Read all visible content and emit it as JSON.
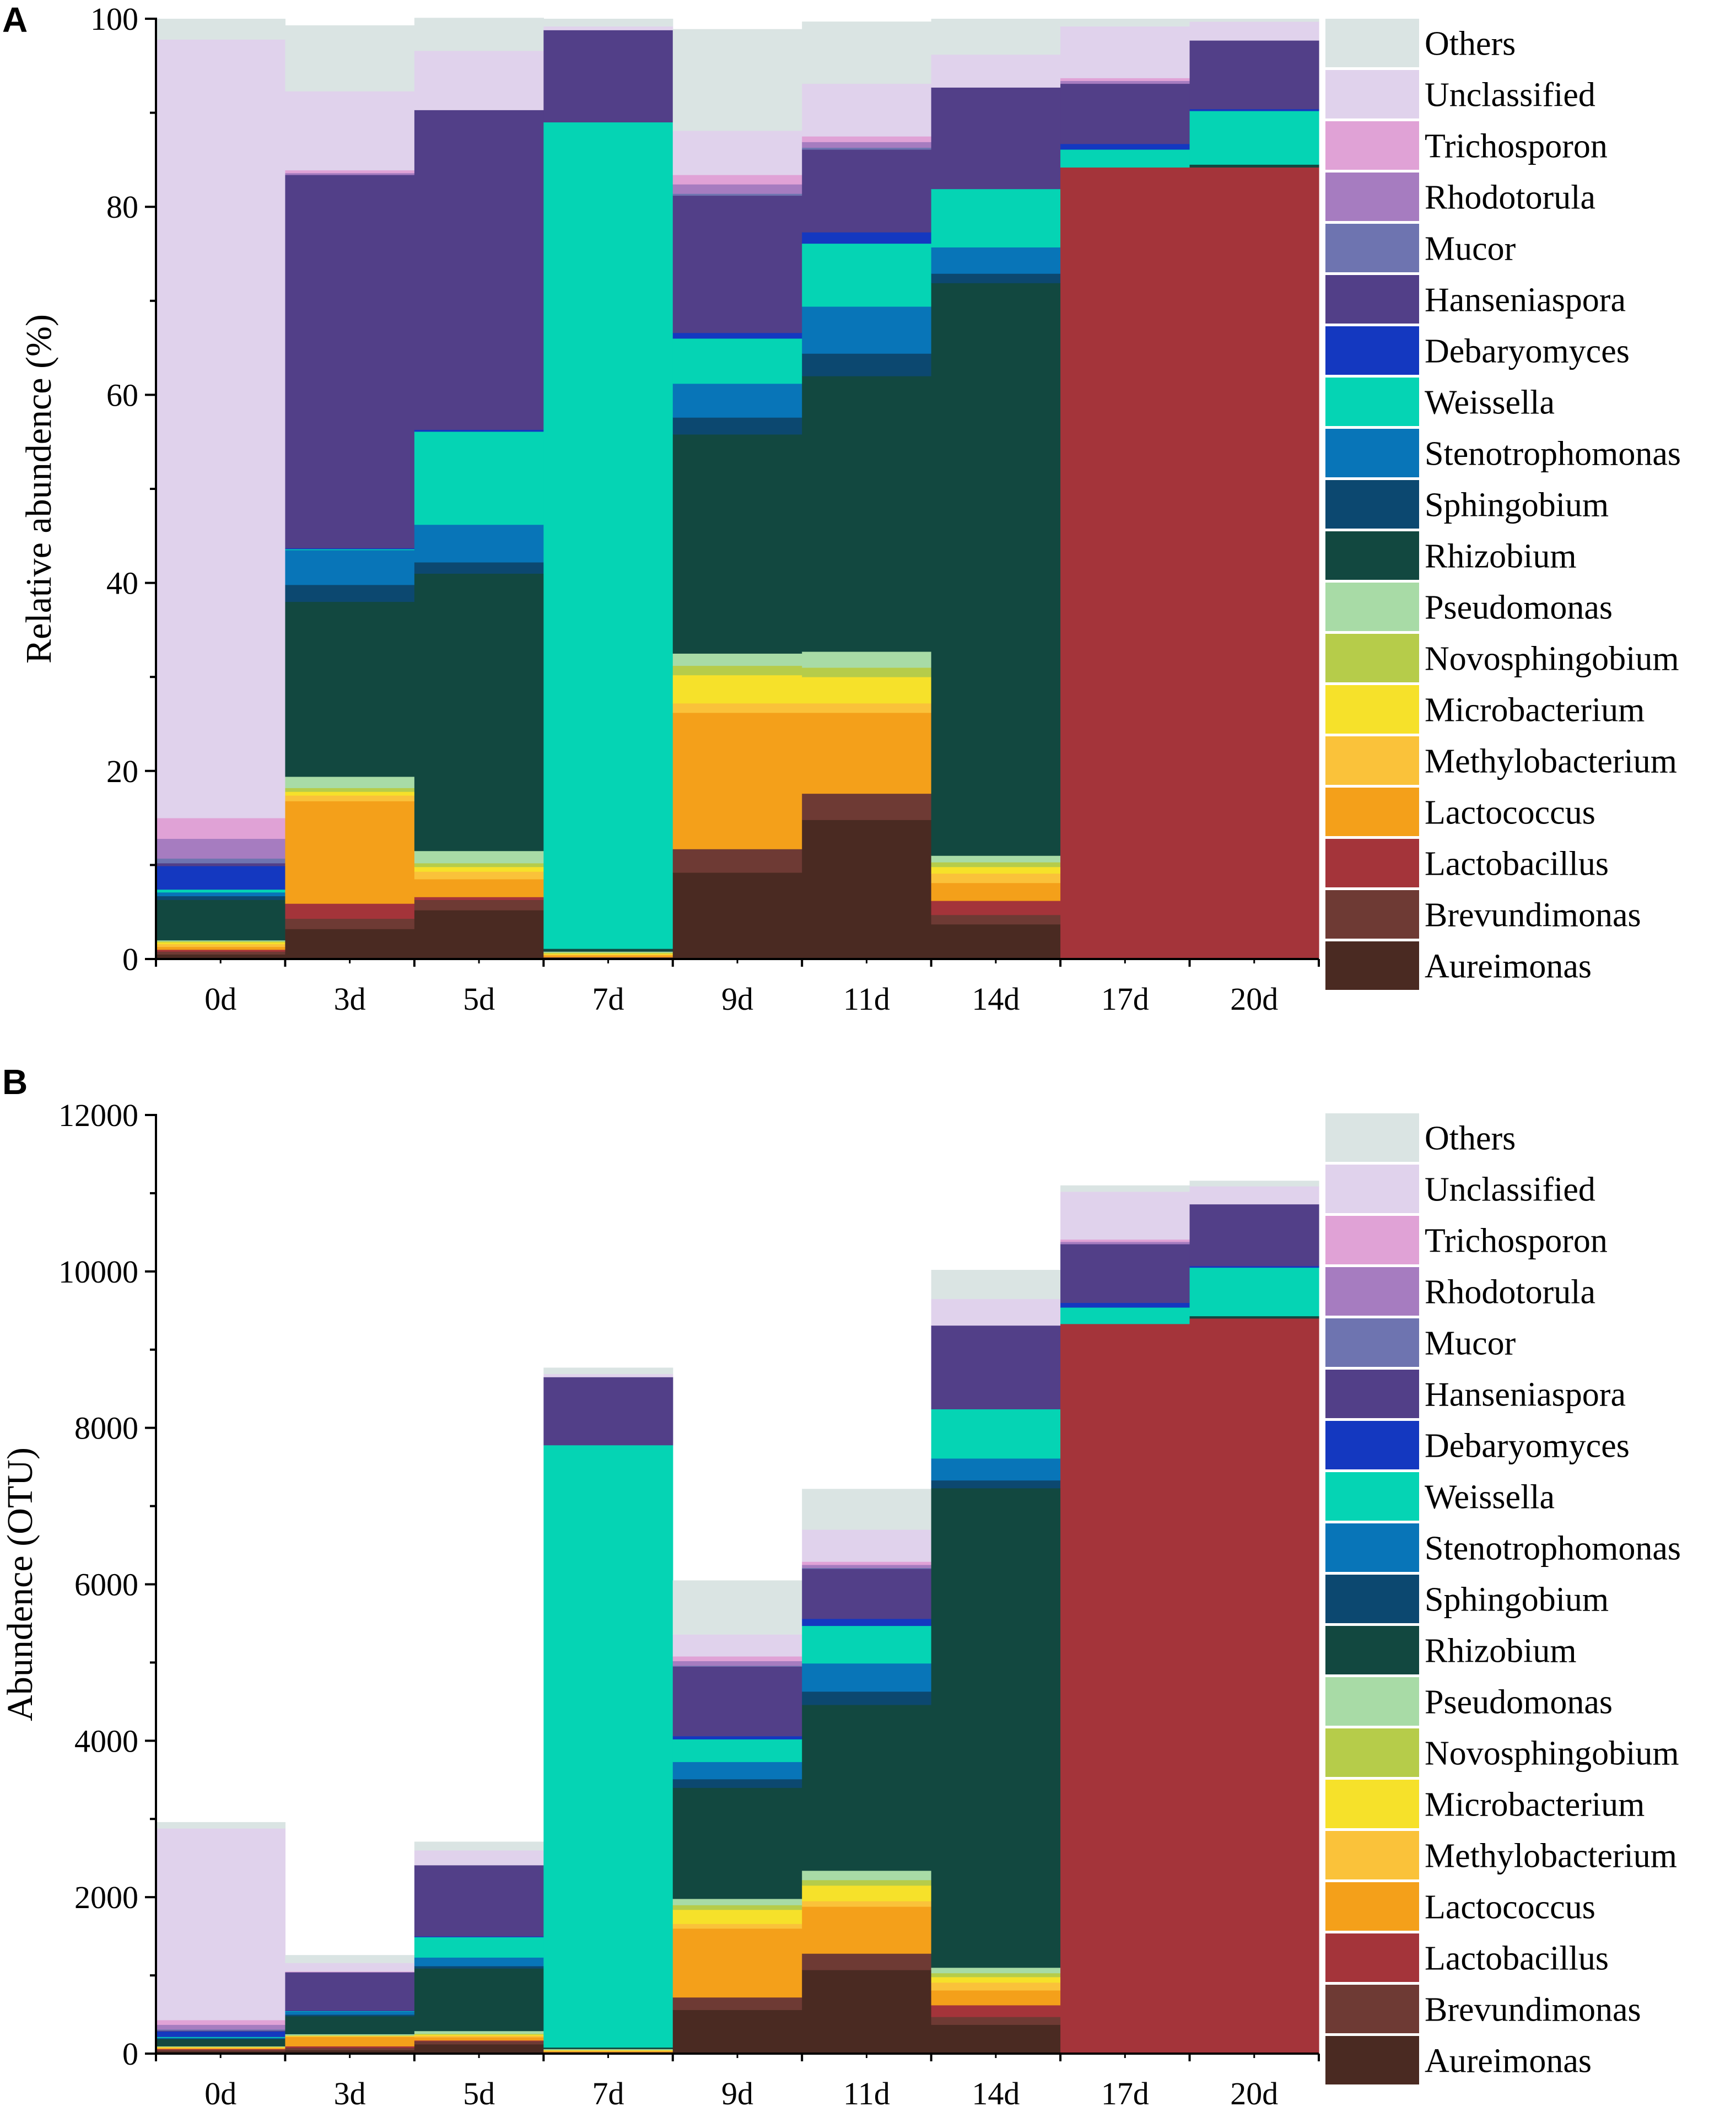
{
  "chart_data": [
    {
      "panel": "A",
      "type": "bar",
      "stacked": true,
      "ylabel": "Relative abundence (%)",
      "xlabel": "",
      "ylim": [
        0,
        100
      ],
      "yticks": [
        0,
        20,
        40,
        60,
        80,
        100
      ],
      "yticks_text": [
        "0",
        "20",
        "40",
        "60",
        "80",
        "100"
      ],
      "categories": [
        "0d",
        "3d",
        "5d",
        "7d",
        "9d",
        "11d",
        "14d",
        "17d",
        "20d"
      ],
      "legend_position": "right",
      "series": [
        {
          "name": "Aureimonas",
          "color": "#4A2A22",
          "values": [
            0.5,
            3.2,
            5.2,
            0.1,
            9.2,
            14.8,
            3.7,
            0,
            0
          ]
        },
        {
          "name": "Brevundimonas",
          "color": "#6E3A34",
          "values": [
            0.3,
            1.1,
            1.1,
            0.1,
            2.5,
            2.8,
            1.0,
            0,
            0
          ]
        },
        {
          "name": "Lactobacillus",
          "color": "#A4343A",
          "values": [
            0.2,
            1.6,
            0.3,
            0,
            0,
            0,
            1.5,
            84.2,
            84.2
          ]
        },
        {
          "name": "Lactococcus",
          "color": "#F4A01A",
          "values": [
            0.3,
            10.9,
            1.9,
            0.2,
            14.5,
            8.6,
            1.9,
            0,
            0
          ]
        },
        {
          "name": "Methylobacterium",
          "color": "#FAC23A",
          "values": [
            0.3,
            0.6,
            0.8,
            0.1,
            1.0,
            1.0,
            1.0,
            0,
            0
          ]
        },
        {
          "name": "Microbacterium",
          "color": "#F6E12A",
          "values": [
            0.2,
            0.4,
            0.5,
            0.1,
            3.0,
            2.8,
            0.7,
            0,
            0
          ]
        },
        {
          "name": "Novosphingobium",
          "color": "#B6CC4A",
          "values": [
            0.1,
            0.4,
            0.4,
            0.1,
            1.0,
            1.0,
            0.5,
            0,
            0
          ]
        },
        {
          "name": "Pseudomonas",
          "color": "#A8DBA6",
          "values": [
            0.1,
            1.2,
            1.3,
            0.1,
            1.3,
            1.7,
            0.7,
            0,
            0
          ]
        },
        {
          "name": "Rhizobium",
          "color": "#124840",
          "values": [
            4.3,
            18.6,
            29.5,
            0.3,
            23.3,
            29.3,
            60.9,
            0,
            0.3
          ]
        },
        {
          "name": "Sphingobium",
          "color": "#0C4870",
          "values": [
            0.4,
            1.8,
            1.2,
            0,
            1.8,
            2.4,
            1.0,
            0,
            0
          ]
        },
        {
          "name": "Stenotrophomonas",
          "color": "#0875B8",
          "values": [
            0.4,
            3.7,
            4.0,
            0,
            3.6,
            5.0,
            2.8,
            0,
            0
          ]
        },
        {
          "name": "Weissella",
          "color": "#05D4B4",
          "values": [
            0.3,
            0.1,
            9.9,
            87.9,
            4.8,
            6.7,
            6.2,
            1.9,
            5.7
          ]
        },
        {
          "name": "Debaryomyces",
          "color": "#1438C0",
          "values": [
            2.5,
            0.1,
            0.2,
            0,
            0.6,
            1.2,
            0,
            0.6,
            0.2
          ]
        },
        {
          "name": "Hanseniaspora",
          "color": "#523F88",
          "values": [
            0.3,
            39.7,
            34.0,
            9.8,
            14.6,
            8.8,
            10.8,
            6.4,
            7.3
          ]
        },
        {
          "name": "Mucor",
          "color": "#6E74B0",
          "values": [
            0.5,
            0,
            0,
            0,
            0.2,
            0.2,
            0,
            0,
            0
          ]
        },
        {
          "name": "Rhodotorula",
          "color": "#A67CC0",
          "values": [
            2.1,
            0.2,
            0,
            0,
            1.0,
            0.6,
            0,
            0.3,
            0
          ]
        },
        {
          "name": "Trichosporon",
          "color": "#E0A2D6",
          "values": [
            2.2,
            0.3,
            0,
            0,
            1.0,
            0.6,
            0,
            0.3,
            0
          ]
        },
        {
          "name": "Unclassified",
          "color": "#E0D2EC",
          "values": [
            82.8,
            8.4,
            6.3,
            0.4,
            4.7,
            5.6,
            3.5,
            5.5,
            2.0
          ]
        },
        {
          "name": "Others",
          "color": "#DAE4E3",
          "values": [
            2.2,
            7.0,
            3.5,
            0.8,
            10.8,
            6.6,
            3.8,
            0.8,
            0.3
          ]
        }
      ]
    },
    {
      "panel": "B",
      "type": "bar",
      "stacked": true,
      "ylabel": "Abundence (OTU)",
      "xlabel": "",
      "ylim": [
        0,
        12000
      ],
      "yticks": [
        0,
        2000,
        4000,
        6000,
        8000,
        10000,
        12000
      ],
      "yticks_text": [
        "0",
        "2000",
        "4000",
        "6000",
        "8000",
        "10000",
        "12000"
      ],
      "categories": [
        "0d",
        "3d",
        "5d",
        "7d",
        "9d",
        "11d",
        "14d",
        "17d",
        "20d"
      ],
      "legend_position": "right",
      "series": [
        {
          "name": "Aureimonas",
          "color": "#4A2A22",
          "values": [
            30,
            45,
            120,
            10,
            560,
            1070,
            370,
            0,
            0
          ]
        },
        {
          "name": "Brevundimonas",
          "color": "#6E3A34",
          "values": [
            20,
            30,
            40,
            10,
            160,
            210,
            100,
            0,
            0
          ]
        },
        {
          "name": "Lactobacillus",
          "color": "#A4343A",
          "values": [
            10,
            20,
            10,
            0,
            0,
            0,
            150,
            9330,
            9400
          ]
        },
        {
          "name": "Lactococcus",
          "color": "#F4A01A",
          "values": [
            10,
            120,
            40,
            10,
            880,
            600,
            190,
            0,
            0
          ]
        },
        {
          "name": "Methylobacterium",
          "color": "#FAC23A",
          "values": [
            10,
            10,
            20,
            10,
            60,
            70,
            100,
            0,
            0
          ]
        },
        {
          "name": "Microbacterium",
          "color": "#F6E12A",
          "values": [
            5,
            5,
            15,
            5,
            180,
            200,
            70,
            0,
            0
          ]
        },
        {
          "name": "Novosphingobium",
          "color": "#B6CC4A",
          "values": [
            5,
            5,
            10,
            5,
            60,
            70,
            50,
            0,
            0
          ]
        },
        {
          "name": "Pseudomonas",
          "color": "#A8DBA6",
          "values": [
            5,
            15,
            35,
            10,
            80,
            120,
            70,
            0,
            0
          ]
        },
        {
          "name": "Rhizobium",
          "color": "#124840",
          "values": [
            90,
            230,
            800,
            20,
            1420,
            2120,
            6130,
            0,
            30
          ]
        },
        {
          "name": "Sphingobium",
          "color": "#0C4870",
          "values": [
            10,
            20,
            30,
            0,
            110,
            170,
            100,
            0,
            0
          ]
        },
        {
          "name": "Stenotrophomonas",
          "color": "#0875B8",
          "values": [
            10,
            40,
            110,
            0,
            220,
            360,
            280,
            0,
            0
          ]
        },
        {
          "name": "Weissella",
          "color": "#05D4B4",
          "values": [
            10,
            5,
            260,
            7700,
            290,
            480,
            630,
            210,
            620
          ]
        },
        {
          "name": "Debaryomyces",
          "color": "#1438C0",
          "values": [
            70,
            5,
            10,
            0,
            40,
            90,
            0,
            60,
            20
          ]
        },
        {
          "name": "Hanseniaspora",
          "color": "#523F88",
          "values": [
            10,
            490,
            910,
            870,
            890,
            640,
            1070,
            750,
            790
          ]
        },
        {
          "name": "Mucor",
          "color": "#6E74B0",
          "values": [
            15,
            0,
            0,
            0,
            10,
            10,
            0,
            0,
            0
          ]
        },
        {
          "name": "Rhodotorula",
          "color": "#A67CC0",
          "values": [
            60,
            5,
            0,
            0,
            60,
            40,
            0,
            30,
            0
          ]
        },
        {
          "name": "Trichosporon",
          "color": "#E0A2D6",
          "values": [
            60,
            5,
            0,
            0,
            60,
            40,
            0,
            30,
            0
          ]
        },
        {
          "name": "Unclassified",
          "color": "#E0D2EC",
          "values": [
            2450,
            110,
            190,
            40,
            280,
            410,
            340,
            610,
            230
          ]
        },
        {
          "name": "Others",
          "color": "#DAE4E3",
          "values": [
            80,
            100,
            110,
            80,
            690,
            520,
            370,
            80,
            70
          ]
        }
      ]
    }
  ]
}
